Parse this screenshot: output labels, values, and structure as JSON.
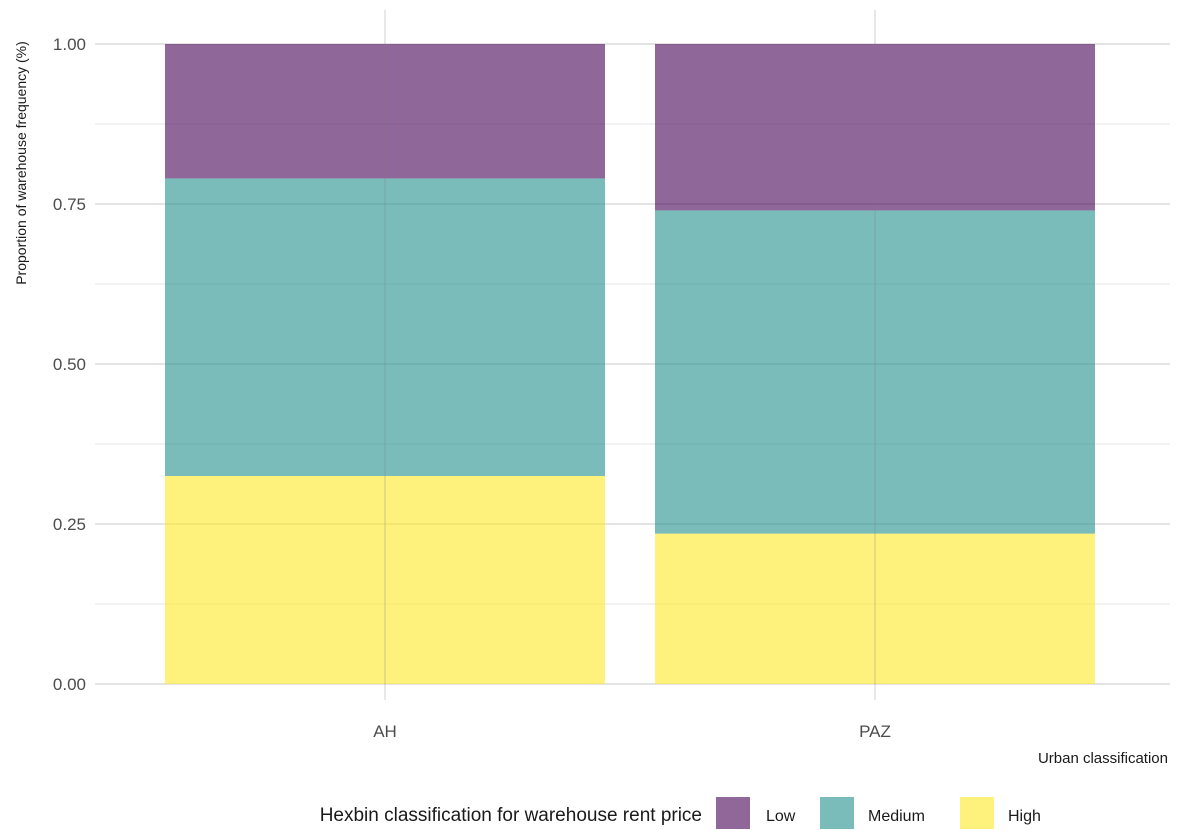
{
  "chart_data": {
    "type": "bar",
    "stacked": true,
    "categories": [
      "AH",
      "PAZ"
    ],
    "series": [
      {
        "name": "High",
        "values": [
          0.325,
          0.235
        ],
        "color": "#FDE725"
      },
      {
        "name": "Medium",
        "values": [
          0.465,
          0.505
        ],
        "color": "#21908C"
      },
      {
        "name": "Low",
        "values": [
          0.21,
          0.26
        ],
        "color": "#440154"
      }
    ],
    "xlabel": "Urban classification",
    "ylabel": "Proportion of warehouse frequency (%)",
    "ylim": [
      0,
      1
    ],
    "yticks": [
      0,
      0.25,
      0.5,
      0.75,
      1
    ],
    "ytick_labels": [
      "0.00",
      "0.25",
      "0.50",
      "0.75",
      "1.00"
    ],
    "legend": {
      "title": "Hexbin classification for warehouse rent price",
      "placement": "bottom",
      "entries": [
        "Low",
        "Medium",
        "High"
      ]
    },
    "grid": true
  }
}
